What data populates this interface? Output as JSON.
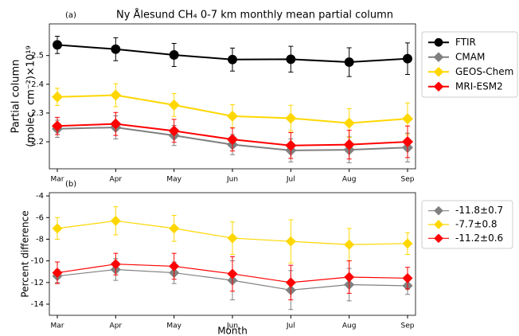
{
  "chart_data": [
    {
      "type": "line",
      "panel_label": "(a)",
      "title": "Ny Ålesund CH₄ 0-7 km monthly mean partial column",
      "ylabel": [
        "Partial column",
        "(molec. cm⁻²)×10¹⁹"
      ],
      "categories": [
        "Mar",
        "Apr",
        "May",
        "Jun",
        "Jul",
        "Aug",
        "Sep"
      ],
      "ylim": [
        2.106,
        2.61
      ],
      "yticks": [
        2.2,
        2.3,
        2.4,
        2.5
      ],
      "legend": "outside-right",
      "series": [
        {
          "name": "FTIR",
          "color": "#000000",
          "marker": "circle",
          "values": [
            2.537,
            2.522,
            2.502,
            2.486,
            2.487,
            2.477,
            2.489
          ],
          "errors": [
            0.03,
            0.04,
            0.04,
            0.04,
            0.045,
            0.05,
            0.055
          ]
        },
        {
          "name": "CMAM",
          "color": "#808080",
          "marker": "diamond",
          "values": [
            2.245,
            2.25,
            2.222,
            2.19,
            2.17,
            2.172,
            2.18
          ],
          "errors": [
            0.03,
            0.04,
            0.035,
            0.035,
            0.04,
            0.045,
            0.05
          ]
        },
        {
          "name": "GEOS-Chem",
          "color": "#ffd700",
          "marker": "diamond",
          "values": [
            2.356,
            2.362,
            2.328,
            2.289,
            2.282,
            2.265,
            2.28
          ],
          "errors": [
            0.03,
            0.04,
            0.04,
            0.04,
            0.045,
            0.05,
            0.055
          ]
        },
        {
          "name": "MRI-ESM2",
          "color": "#ff0000",
          "marker": "diamond",
          "values": [
            2.255,
            2.262,
            2.238,
            2.208,
            2.187,
            2.19,
            2.2
          ],
          "errors": [
            0.03,
            0.04,
            0.04,
            0.04,
            0.045,
            0.05,
            0.055
          ]
        }
      ]
    },
    {
      "type": "line",
      "panel_label": "(b)",
      "xlabel": "Month",
      "ylabel": "Percent difference",
      "categories": [
        "Mar",
        "Apr",
        "May",
        "Jun",
        "Jul",
        "Aug",
        "Sep"
      ],
      "ylim": [
        -15.03,
        -3.7
      ],
      "yticks": [
        -14,
        -12,
        -10,
        -8,
        -6,
        -4
      ],
      "legend": "outside-right",
      "series": [
        {
          "name": "-11.8±0.7",
          "color": "#808080",
          "marker": "diamond",
          "values": [
            -11.4,
            -10.8,
            -11.1,
            -11.8,
            -12.7,
            -12.2,
            -12.3
          ],
          "errors": [
            0.6,
            1.0,
            1.0,
            1.8,
            1.8,
            1.5,
            0.8
          ]
        },
        {
          "name": "-7.7±0.8",
          "color": "#ffd700",
          "marker": "diamond",
          "values": [
            -7.0,
            -6.3,
            -7.0,
            -7.9,
            -8.2,
            -8.5,
            -8.4
          ],
          "errors": [
            1.0,
            1.3,
            1.2,
            1.5,
            2.0,
            1.5,
            1.0
          ]
        },
        {
          "name": "-11.2±0.6",
          "color": "#ff0000",
          "marker": "diamond",
          "values": [
            -11.1,
            -10.3,
            -10.5,
            -11.2,
            -12.0,
            -11.5,
            -11.6
          ],
          "errors": [
            1.0,
            1.0,
            1.2,
            1.6,
            1.6,
            1.5,
            1.0
          ]
        }
      ]
    }
  ]
}
